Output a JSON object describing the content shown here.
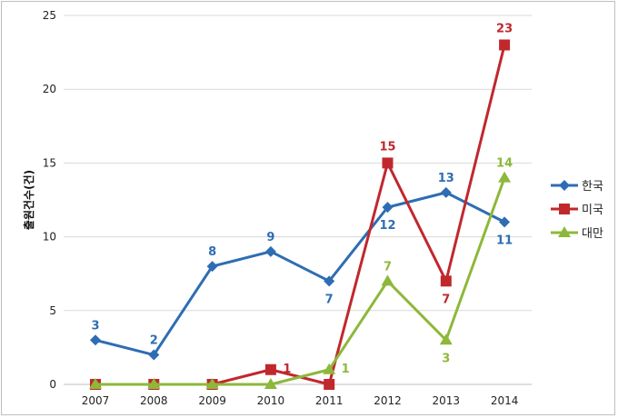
{
  "chart_data": {
    "type": "line",
    "categories": [
      "2007",
      "2008",
      "2009",
      "2010",
      "2011",
      "2012",
      "2013",
      "2014"
    ],
    "ylabel": "출원건수(건)",
    "xlabel": "",
    "ylim": [
      0,
      25
    ],
    "yticks": [
      "0",
      "5",
      "10",
      "15",
      "20",
      "25"
    ],
    "grid": true,
    "legend_position": "right",
    "series": [
      {
        "name": "한국",
        "color": "#2e6db3",
        "marker": "diamond",
        "values": [
          3,
          2,
          8,
          9,
          7,
          12,
          13,
          11
        ],
        "labels": [
          "3",
          "2",
          "8",
          "9",
          "7",
          "12",
          "13",
          "11"
        ]
      },
      {
        "name": "미국",
        "color": "#c0282d",
        "marker": "square",
        "values": [
          0,
          0,
          0,
          1,
          0,
          15,
          7,
          23
        ],
        "labels": [
          "",
          "",
          "",
          "1",
          "",
          "15",
          "7",
          "23"
        ]
      },
      {
        "name": "대만",
        "color": "#8db83a",
        "marker": "triangle",
        "values": [
          0,
          0,
          0,
          0,
          1,
          7,
          3,
          14
        ],
        "labels": [
          "",
          "",
          "",
          "",
          "1",
          "7",
          "3",
          "14"
        ]
      }
    ]
  }
}
